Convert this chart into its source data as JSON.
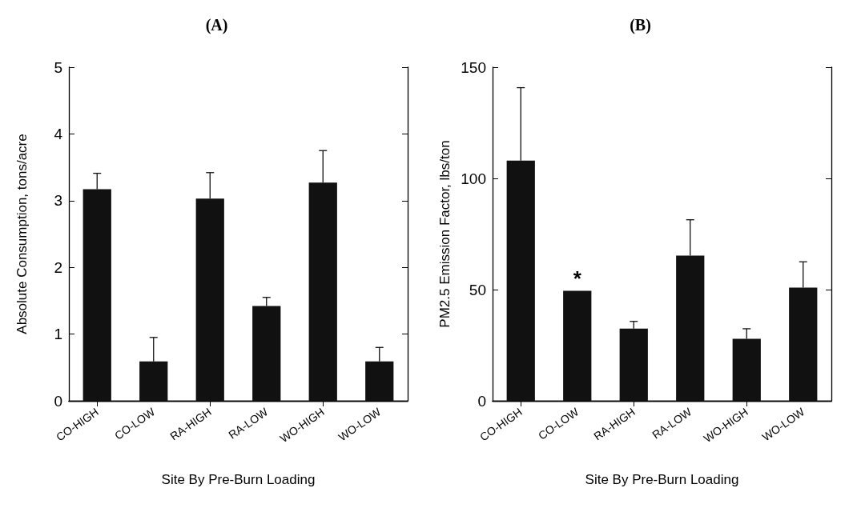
{
  "chart_data": [
    {
      "type": "bar",
      "title": "(A)",
      "xlabel": "Site By Pre-Burn Loading",
      "ylabel": "Absolute Consumption, tons/acre",
      "categories": [
        "CO-HIGH",
        "CO-LOW",
        "RA-HIGH",
        "RA-LOW",
        "WO-HIGH",
        "WO-LOW"
      ],
      "values": [
        3.17,
        0.59,
        3.03,
        1.42,
        3.27,
        0.59
      ],
      "errors": [
        [
          3.17,
          3.41
        ],
        [
          0.59,
          0.95
        ],
        [
          3.03,
          3.42
        ],
        [
          1.42,
          1.55
        ],
        [
          3.27,
          3.75
        ],
        [
          0.59,
          0.8
        ]
      ],
      "color": "#111111",
      "ylim": [
        0,
        5
      ],
      "yticks": [
        0,
        1,
        2,
        3,
        4,
        5
      ],
      "grid": false
    },
    {
      "type": "bar",
      "title": "(B)",
      "xlabel": "Site By Pre-Burn Loading",
      "ylabel": "PM2.5 Emission Factor, lbs/ton",
      "categories": [
        "CO-HIGH",
        "CO-LOW",
        "RA-HIGH",
        "RA-LOW",
        "WO-HIGH",
        "WO-LOW"
      ],
      "values": [
        108,
        49.5,
        32.5,
        65.3,
        27.9,
        50.9
      ],
      "errors": [
        [
          108,
          140.8
        ],
        null,
        [
          32.5,
          35.7
        ],
        [
          65.3,
          81.4
        ],
        [
          27.9,
          32.4
        ],
        [
          50.9,
          62.5
        ]
      ],
      "color": "#111111",
      "ylim": [
        0,
        150
      ],
      "yticks": [
        0,
        50,
        100,
        150
      ],
      "grid": false,
      "annotations": [
        {
          "text": "*",
          "x": "CO-LOW",
          "y": 49.5
        }
      ]
    }
  ]
}
